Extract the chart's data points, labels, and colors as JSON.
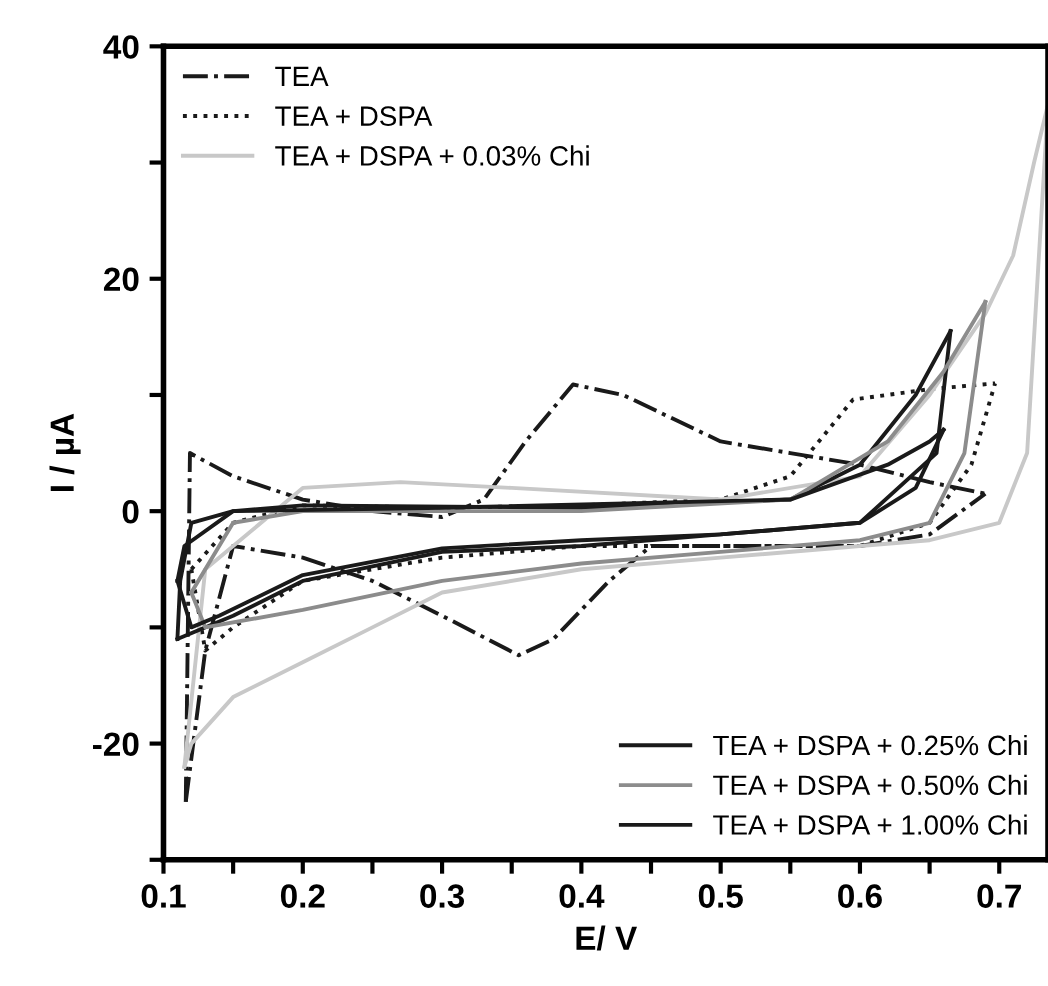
{
  "chart_data": {
    "type": "line",
    "xlabel": "E/ V",
    "ylabel": "I / µA",
    "xlim": [
      0.1,
      0.735
    ],
    "ylim": [
      -30,
      40
    ],
    "xticks": [
      0.1,
      {
        "value": 0.15,
        "label": null
      },
      0.2,
      {
        "value": 0.25,
        "label": null
      },
      0.3,
      {
        "value": 0.35,
        "label": null
      },
      0.4,
      {
        "value": 0.45,
        "label": null
      },
      0.5,
      {
        "value": 0.55,
        "label": null
      },
      0.6,
      {
        "value": 0.65,
        "label": null
      },
      0.7
    ],
    "yticks": [
      {
        "value": -30,
        "label": null
      },
      -20,
      {
        "value": -10,
        "label": null
      },
      0,
      {
        "value": 10,
        "label": null
      },
      20,
      {
        "value": 30,
        "label": null
      },
      40
    ],
    "grid": false,
    "legend": "top left",
    "series": [
      {
        "name": "TEA",
        "color": "#1a1a1a",
        "line_style": "dashdot",
        "x": [
          0.116,
          0.119,
          0.15,
          0.2,
          0.25,
          0.3,
          0.33,
          0.36,
          0.394,
          0.43,
          0.5,
          0.55,
          0.6,
          0.65,
          0.69
        ],
        "values": [
          -25,
          5,
          3,
          1,
          0,
          -0.5,
          1,
          6,
          10.9,
          10,
          6,
          5,
          4,
          2.5,
          1.5
        ]
      },
      {
        "color": "#1a1a1a",
        "line_style": "dashdot",
        "x": [
          0.116,
          0.13,
          0.15,
          0.2,
          0.25,
          0.3,
          0.355,
          0.38,
          0.42,
          0.45,
          0.5,
          0.6,
          0.65,
          0.69
        ],
        "values": [
          -25,
          -12,
          -3,
          -4,
          -6,
          -9,
          -12.4,
          -11,
          -6,
          -3,
          -3,
          -3,
          -2,
          1.5
        ]
      },
      {
        "name": "TEA + DSPA",
        "color": "#1a1a1a",
        "line_style": "dotted",
        "x": [
          0.12,
          0.15,
          0.2,
          0.3,
          0.4,
          0.5,
          0.55,
          0.595,
          0.65,
          0.697
        ],
        "values": [
          -5,
          -1,
          0.5,
          0.3,
          0.5,
          1,
          3,
          9.6,
          10.5,
          11
        ]
      },
      {
        "color": "#1a1a1a",
        "line_style": "dotted",
        "x": [
          0.12,
          0.13,
          0.15,
          0.2,
          0.3,
          0.4,
          0.5,
          0.6,
          0.65,
          0.68,
          0.697
        ],
        "values": [
          -5,
          -12,
          -10,
          -6,
          -4,
          -3,
          -3,
          -3,
          -1,
          4,
          11
        ]
      },
      {
        "name": "TEA + DSPA + 0.03% Chi",
        "color": "#c8c8c8",
        "line_style": "solid",
        "x": [
          0.115,
          0.13,
          0.2,
          0.27,
          0.35,
          0.5,
          0.6,
          0.65,
          0.69,
          0.71,
          0.725,
          0.735
        ],
        "values": [
          -22,
          -5,
          2,
          2.5,
          2,
          1,
          3,
          10,
          17,
          22,
          30,
          35
        ]
      },
      {
        "color": "#c8c8c8",
        "line_style": "solid",
        "x": [
          0.115,
          0.12,
          0.15,
          0.2,
          0.25,
          0.3,
          0.4,
          0.5,
          0.6,
          0.65,
          0.7,
          0.72,
          0.735
        ],
        "values": [
          -22,
          -20,
          -16,
          -13,
          -10,
          -7,
          -5,
          -4,
          -3,
          -2.5,
          -1,
          5,
          35
        ]
      },
      {
        "name": "TEA + DSPA + 0.25% Chi",
        "color": "#1a1a1a",
        "line_style": "solid",
        "x": [
          0.11,
          0.112,
          0.12,
          0.15,
          0.2,
          0.4,
          0.55,
          0.6,
          0.64,
          0.665
        ],
        "values": [
          -11,
          -6,
          -1,
          0,
          0.5,
          0.3,
          1,
          4,
          10,
          15.5
        ]
      },
      {
        "color": "#1a1a1a",
        "line_style": "solid",
        "x": [
          0.11,
          0.15,
          0.2,
          0.3,
          0.4,
          0.5,
          0.6,
          0.655,
          0.665
        ],
        "values": [
          -11,
          -9,
          -6,
          -3.5,
          -3,
          -2,
          -1,
          5,
          15.5
        ]
      },
      {
        "name": "TEA + DSPA + 0.50% Chi",
        "color": "#8c8c8c",
        "line_style": "solid",
        "x": [
          0.12,
          0.15,
          0.2,
          0.4,
          0.55,
          0.62,
          0.66,
          0.69
        ],
        "values": [
          -7,
          -1,
          0,
          0,
          1,
          6,
          12,
          18
        ]
      },
      {
        "color": "#8c8c8c",
        "line_style": "solid",
        "x": [
          0.12,
          0.13,
          0.2,
          0.3,
          0.4,
          0.5,
          0.6,
          0.65,
          0.675,
          0.69
        ],
        "values": [
          -7,
          -10,
          -8.5,
          -6,
          -4.5,
          -3.5,
          -2.5,
          -1,
          5,
          18
        ]
      },
      {
        "name": "TEA + DSPA + 1.00% Chi",
        "color": "#1a1a1a",
        "line_style": "solid",
        "x": [
          0.11,
          0.115,
          0.15,
          0.3,
          0.55,
          0.62,
          0.65,
          0.66
        ],
        "values": [
          -6,
          -3,
          0,
          0.3,
          1,
          4,
          6,
          7
        ]
      },
      {
        "color": "#1a1a1a",
        "line_style": "solid",
        "x": [
          0.11,
          0.12,
          0.14,
          0.2,
          0.3,
          0.4,
          0.5,
          0.6,
          0.64,
          0.66
        ],
        "values": [
          -6,
          -10,
          -9,
          -5.5,
          -3.2,
          -2.5,
          -2,
          -1,
          2,
          7
        ]
      }
    ]
  }
}
